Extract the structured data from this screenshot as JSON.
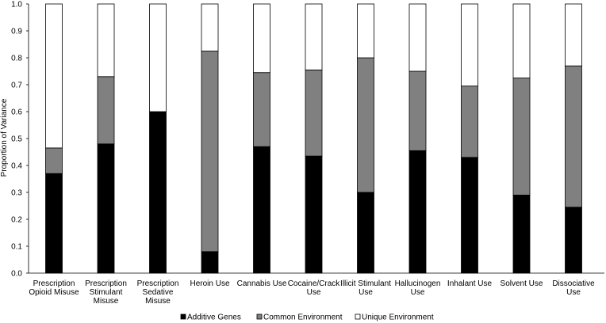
{
  "chart_data": {
    "type": "bar",
    "stacked": true,
    "normalized": true,
    "ylabel": "Proportion of Variance",
    "xlabel": "",
    "ylim": [
      0,
      1.0
    ],
    "yticks": [
      "0.0",
      "0.1",
      "0.2",
      "0.3",
      "0.4",
      "0.5",
      "0.6",
      "0.7",
      "0.8",
      "0.9",
      "1.0"
    ],
    "grid": false,
    "legend_position": "bottom",
    "categories": [
      [
        "Prescription",
        "Opioid Misuse"
      ],
      [
        "Prescription",
        "Stimulant",
        "Misuse"
      ],
      [
        "Prescription",
        "Sedative",
        "Misuse"
      ],
      [
        "Heroin Use"
      ],
      [
        "Cannabis Use"
      ],
      [
        "Cocaine/Crack",
        "Use"
      ],
      [
        "Illicit Stimulant",
        "Use"
      ],
      [
        "Hallucinogen",
        "Use"
      ],
      [
        "Inhalant Use"
      ],
      [
        "Solvent Use"
      ],
      [
        "Dissociative",
        "Use"
      ]
    ],
    "series": [
      {
        "name": "Additive Genes",
        "color": "#000000",
        "values": [
          0.37,
          0.48,
          0.6,
          0.08,
          0.47,
          0.435,
          0.3,
          0.455,
          0.43,
          0.29,
          0.245
        ]
      },
      {
        "name": "Common Environment",
        "color": "#808080",
        "values": [
          0.095,
          0.25,
          0.0,
          0.745,
          0.275,
          0.32,
          0.5,
          0.295,
          0.265,
          0.435,
          0.525
        ]
      },
      {
        "name": "Unique Environment",
        "color": "#ffffff",
        "values": [
          0.535,
          0.27,
          0.4,
          0.175,
          0.255,
          0.245,
          0.2,
          0.25,
          0.305,
          0.275,
          0.23
        ]
      }
    ]
  }
}
